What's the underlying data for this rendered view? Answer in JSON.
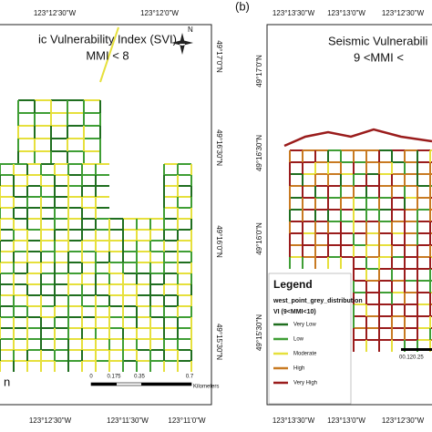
{
  "panels": [
    {
      "title": "ic Vulnerability Index (SVI)",
      "subtitle": "MMI < 8",
      "north": "N",
      "top_labels": [
        "123°12'30\"W",
        "123°12'0\"W"
      ],
      "side_labels": [
        "49°17'0\"N",
        "49°16'30\"N",
        "49°16'0\"N",
        "49°15'30\"N"
      ],
      "bottom_labels": [
        "123°12'30\"W",
        "123°11'30\"W",
        "123°11'0\"W"
      ],
      "scale_labels": [
        "0",
        "0.175",
        "0.35",
        "0.7"
      ],
      "scale_unit": "Kilometers",
      "fragment": "n"
    },
    {
      "tag": "(b)",
      "title": "Seismic Vulnerabili",
      "subtitle": "9 <MMI <",
      "top_labels": [
        "123°13'30\"W",
        "123°13'0\"W",
        "123°12'30\"W"
      ],
      "side_labels": [
        "49°17'0\"N",
        "49°16'30\"N",
        "49°16'0\"N",
        "49°15'30\"N"
      ],
      "bottom_labels": [
        "123°13'30\"W",
        "123°13'0\"W",
        "123°12'30\"W"
      ],
      "scale_labels": [
        "00.120.25"
      ]
    }
  ],
  "legend": {
    "title": "Legend",
    "layer": "west_point_grey_distribution",
    "field": "VI (9<MMI<10)",
    "items": [
      {
        "label": "Very Low",
        "color": "#1f6e1f"
      },
      {
        "label": "Low",
        "color": "#3f9e35"
      },
      {
        "label": "Moderate",
        "color": "#e6e03c"
      },
      {
        "label": "High",
        "color": "#c87a22"
      },
      {
        "label": "Very High",
        "color": "#9a1c1c"
      }
    ]
  }
}
